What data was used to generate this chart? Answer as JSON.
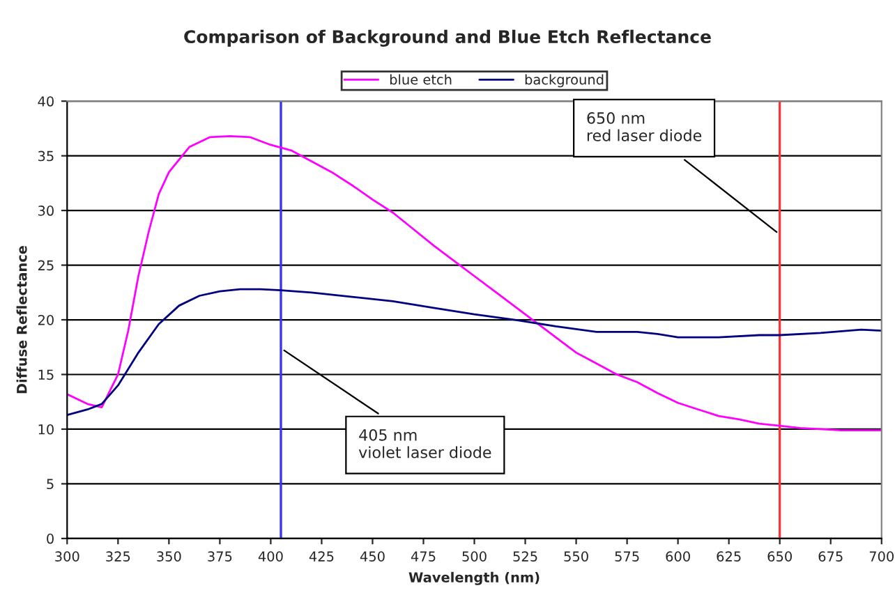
{
  "chart_data": {
    "type": "line",
    "title": "Comparison of Background and Blue Etch Reflectance",
    "xlabel": "Wavelength (nm)",
    "ylabel": "Diffuse Reflectance",
    "series": [
      {
        "name": "blue etch",
        "color": "#ff00ff",
        "x": [
          300,
          310,
          317,
          325,
          330,
          335,
          340,
          345,
          350,
          360,
          370,
          380,
          390,
          400,
          410,
          420,
          430,
          440,
          450,
          460,
          470,
          480,
          490,
          500,
          510,
          520,
          530,
          540,
          550,
          560,
          570,
          580,
          590,
          600,
          610,
          620,
          630,
          640,
          650,
          660,
          670,
          680,
          700
        ],
        "values": [
          13.2,
          12.3,
          12.0,
          15,
          19,
          24,
          28,
          31.5,
          33.5,
          35.8,
          36.7,
          36.8,
          36.7,
          36.0,
          35.5,
          34.5,
          33.5,
          32.3,
          31.0,
          29.8,
          28.3,
          26.8,
          25.4,
          24,
          22.6,
          21.2,
          19.8,
          18.4,
          17,
          16,
          15,
          14.3,
          13.3,
          12.4,
          11.8,
          11.2,
          10.9,
          10.5,
          10.3,
          10.1,
          10.0,
          9.9,
          9.9
        ]
      },
      {
        "name": "background",
        "color": "#000080",
        "x": [
          300,
          310,
          317,
          325,
          335,
          345,
          355,
          365,
          375,
          385,
          395,
          405,
          420,
          440,
          460,
          480,
          500,
          520,
          540,
          560,
          580,
          590,
          600,
          620,
          640,
          650,
          670,
          690,
          700
        ],
        "values": [
          11.3,
          11.8,
          12.3,
          14,
          17,
          19.6,
          21.3,
          22.2,
          22.6,
          22.8,
          22.8,
          22.7,
          22.5,
          22.1,
          21.7,
          21.1,
          20.5,
          20.0,
          19.4,
          18.9,
          18.9,
          18.7,
          18.4,
          18.4,
          18.6,
          18.6,
          18.8,
          19.1,
          19.0
        ]
      }
    ],
    "xlim": [
      300,
      700
    ],
    "xticks": [
      300,
      325,
      350,
      375,
      400,
      425,
      450,
      475,
      500,
      525,
      550,
      575,
      600,
      625,
      650,
      675,
      700
    ],
    "ylim": [
      0,
      40
    ],
    "yticks": [
      0,
      5,
      10,
      15,
      20,
      25,
      30,
      35,
      40
    ],
    "ref_lines": [
      {
        "axis": "x",
        "value": 405,
        "color": "#3333ff"
      },
      {
        "axis": "x",
        "value": 650,
        "color": "#ff3333"
      }
    ],
    "annotations": [
      {
        "text": "405 nm\nviolet laser diode",
        "x": 405,
        "y": 17.4
      },
      {
        "text": "650 nm\nred laser diode",
        "x": 650,
        "y": 27.8
      }
    ],
    "grid": "y",
    "legend": "top",
    "marker": "none",
    "line_style": "solid"
  }
}
